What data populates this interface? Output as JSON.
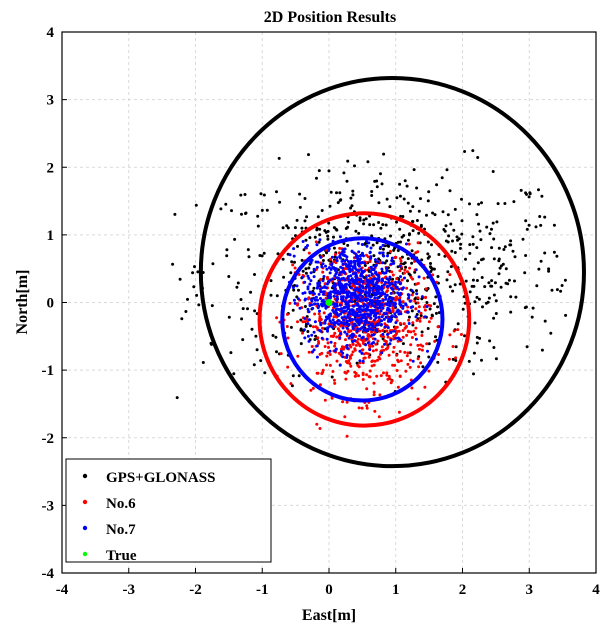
{
  "chart_data": {
    "type": "scatter",
    "title": "2D Position Results",
    "xlabel": "East[m]",
    "ylabel": "North[m]",
    "xlim": [
      -4,
      4
    ],
    "ylim": [
      -4,
      4
    ],
    "xticks": [
      "-4",
      "-3",
      "-2",
      "-1",
      "0",
      "1",
      "2",
      "3",
      "4"
    ],
    "yticks": [
      "-4",
      "-3",
      "-2",
      "-1",
      "0",
      "1",
      "2",
      "3",
      "4"
    ],
    "grid": true,
    "legend_position": "bottom-left",
    "series": [
      {
        "name": "GPS+GLONASS",
        "color": "#000000",
        "cluster": {
          "center": [
            0.9,
            0.5
          ],
          "spread": [
            1.4,
            0.75
          ],
          "count": 700,
          "x_range": [
            -2.5,
            3.7
          ],
          "y_range": [
            -1.45,
            2.25
          ]
        }
      },
      {
        "name": "No.6",
        "color": "#ff0000",
        "cluster": {
          "center": [
            0.5,
            -0.25
          ],
          "spread": [
            0.5,
            0.55
          ],
          "count": 800,
          "x_range": [
            -0.8,
            2.5
          ],
          "y_range": [
            -2.0,
            0.9
          ]
        }
      },
      {
        "name": "No.7",
        "color": "#0000ff",
        "cluster": {
          "center": [
            0.4,
            0.1
          ],
          "spread": [
            0.38,
            0.38
          ],
          "count": 900,
          "x_range": [
            -0.6,
            1.6
          ],
          "y_range": [
            -1.0,
            1.0
          ]
        }
      },
      {
        "name": "True",
        "color": "#00ff00",
        "points": [
          [
            0,
            0
          ]
        ]
      }
    ],
    "circles": [
      {
        "series": "GPS+GLONASS",
        "center": [
          0.95,
          0.45
        ],
        "radius": 2.87,
        "color": "#000000"
      },
      {
        "series": "No.6",
        "center": [
          0.53,
          -0.25
        ],
        "radius": 1.57,
        "color": "#ff0000"
      },
      {
        "series": "No.7",
        "center": [
          0.5,
          -0.25
        ],
        "radius": 1.2,
        "color": "#0000ff"
      }
    ]
  }
}
